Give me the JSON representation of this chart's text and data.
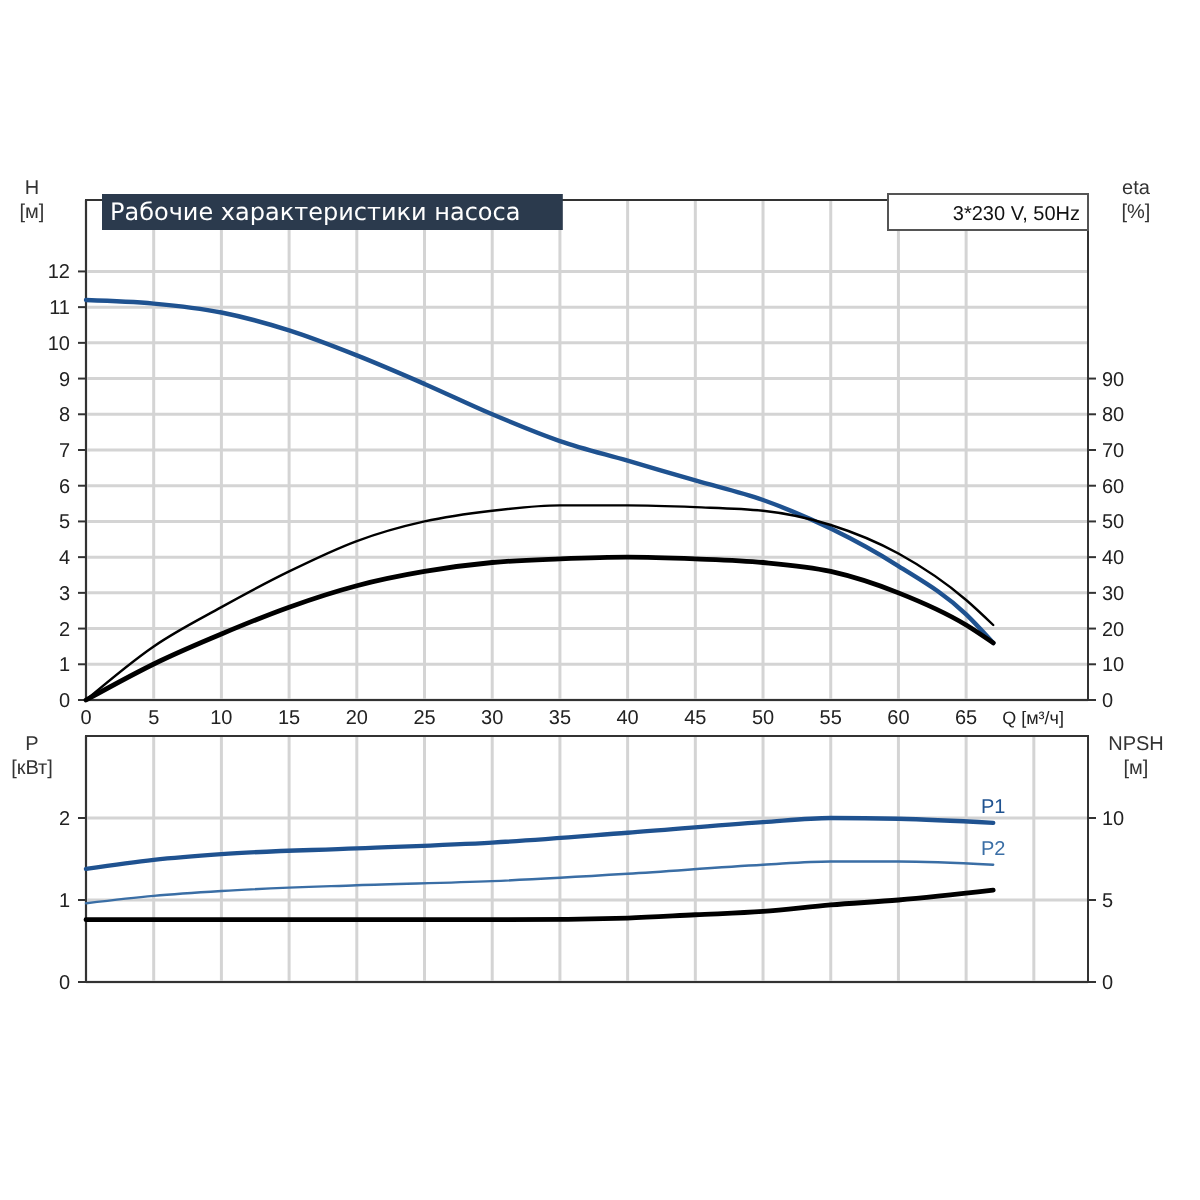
{
  "chart_data": [
    {
      "type": "line",
      "title": "Рабочие характеристики насоса",
      "annotations": [
        "3*230 V, 50Hz"
      ],
      "xlabel": "Q [м³/ч]",
      "ylabel": "H [м]",
      "y2label": "eta [%]",
      "xlim": [
        0,
        74
      ],
      "xticks": [
        0,
        5,
        10,
        15,
        20,
        25,
        30,
        35,
        40,
        45,
        50,
        55,
        60,
        65
      ],
      "ylim": [
        0,
        14
      ],
      "yticks": [
        0,
        1,
        2,
        3,
        4,
        5,
        6,
        7,
        8,
        9,
        10,
        11,
        12
      ],
      "y2lim": [
        0,
        140
      ],
      "y2ticks": [
        0,
        10,
        20,
        30,
        40,
        50,
        60,
        70,
        80,
        90
      ],
      "grid": true,
      "series": [
        {
          "color": "#1f5290",
          "x": [
            0,
            5,
            10,
            15,
            20,
            25,
            30,
            35,
            40,
            45,
            50,
            55,
            60,
            65,
            67
          ],
          "values": [
            11.2,
            11.1,
            10.85,
            10.35,
            9.65,
            8.85,
            8.0,
            7.25,
            6.7,
            6.15,
            5.6,
            4.8,
            3.75,
            2.4,
            1.6
          ]
        },
        {
          "color": "#000000",
          "axis": "y2",
          "x": [
            0,
            5,
            10,
            15,
            20,
            25,
            30,
            35,
            40,
            45,
            50,
            55,
            60,
            65,
            67
          ],
          "values": [
            0,
            15,
            26,
            36,
            44.5,
            50,
            53,
            54.5,
            54.5,
            54,
            53,
            49,
            41,
            28,
            21
          ]
        },
        {
          "color": "#000000",
          "axis": "y2",
          "x": [
            0,
            5.5,
            10,
            15,
            20,
            25,
            30,
            35,
            40,
            45,
            50,
            55,
            60,
            65,
            67
          ],
          "values": [
            0,
            11,
            18.5,
            26,
            32,
            36,
            38.5,
            39.5,
            40,
            39.5,
            38.5,
            36,
            30,
            21,
            16
          ]
        }
      ]
    },
    {
      "type": "line",
      "ylabel": "P [кВт]",
      "y2label": "NPSH [м]",
      "xlim": [
        0,
        74
      ],
      "xticks": [
        0,
        5,
        10,
        15,
        20,
        25,
        30,
        35,
        40,
        45,
        50,
        55,
        60,
        65,
        70
      ],
      "ylim": [
        0,
        3
      ],
      "yticks": [
        0,
        1,
        2
      ],
      "y2lim": [
        0,
        15
      ],
      "y2ticks": [
        0,
        5,
        10
      ],
      "grid": true,
      "tick_labels": "y",
      "series": [
        {
          "name": "P1",
          "color": "#1f5290",
          "x": [
            0,
            5,
            10,
            20,
            30,
            40,
            50,
            55,
            60,
            67
          ],
          "values": [
            1.38,
            1.49,
            1.56,
            1.63,
            1.7,
            1.82,
            1.95,
            2.0,
            1.99,
            1.94
          ]
        },
        {
          "name": "P2",
          "color": "#3a6ea5",
          "x": [
            0,
            5,
            10,
            20,
            30,
            40,
            50,
            55,
            60,
            67
          ],
          "values": [
            0.96,
            1.05,
            1.11,
            1.18,
            1.23,
            1.32,
            1.43,
            1.47,
            1.47,
            1.43
          ]
        },
        {
          "color": "#000000",
          "axis": "y2",
          "x": [
            0,
            5.5,
            20,
            30,
            40,
            45,
            50,
            55,
            60,
            67
          ],
          "values": [
            3.8,
            3.8,
            3.8,
            3.8,
            3.9,
            4.1,
            4.3,
            4.7,
            5.0,
            5.6
          ]
        }
      ]
    }
  ]
}
